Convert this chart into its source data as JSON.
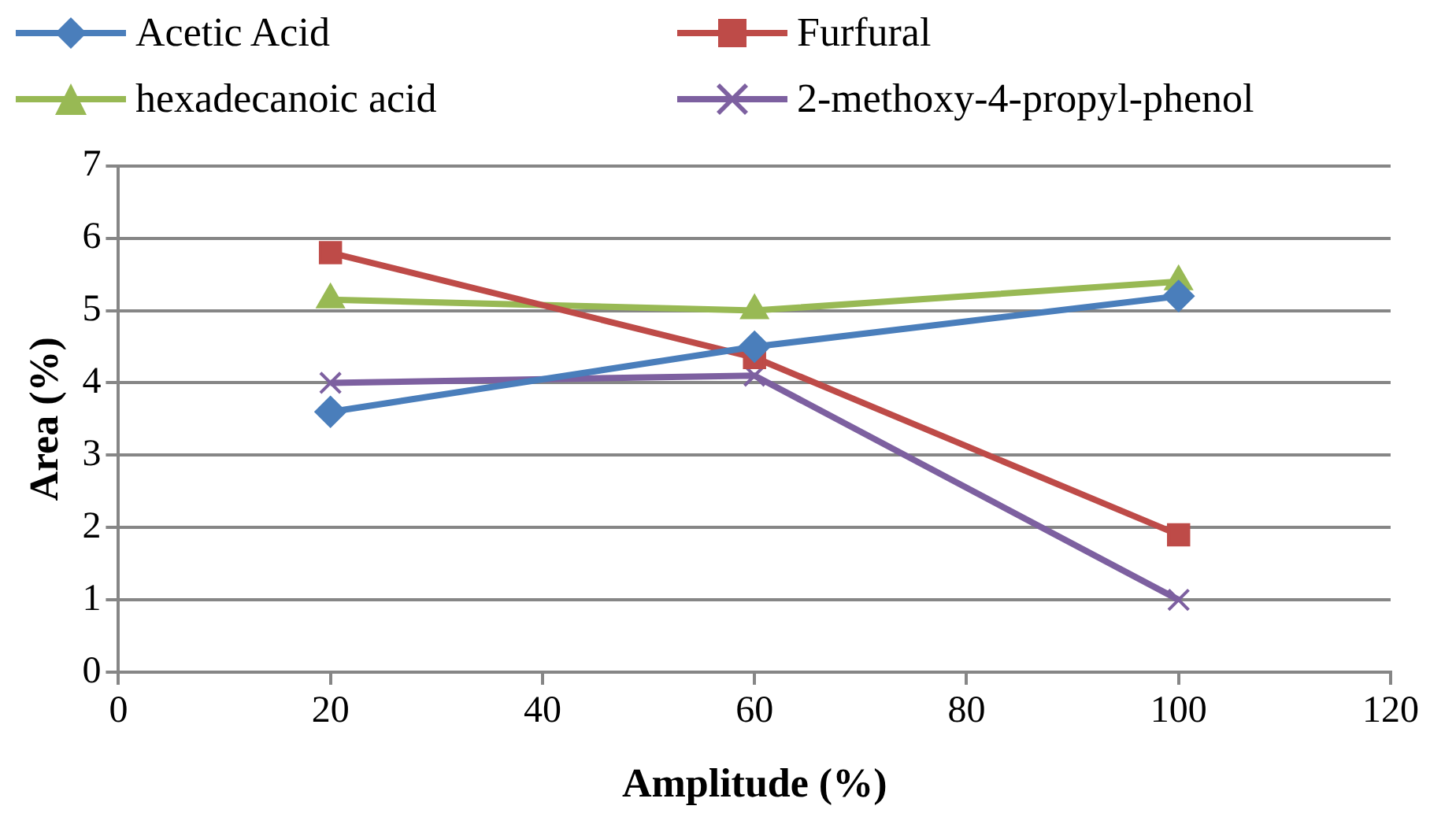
{
  "chart_data": {
    "type": "line",
    "xlabel": "Amplitude (%)",
    "ylabel": "Area (%)",
    "x": [
      20,
      60,
      100
    ],
    "series": [
      {
        "name": "Acetic Acid",
        "color": "#4a7ebb",
        "marker": "diamond",
        "values": [
          3.6,
          4.5,
          5.2
        ]
      },
      {
        "name": "Furfural",
        "color": "#be4b48",
        "marker": "square",
        "values": [
          5.8,
          4.35,
          1.9
        ]
      },
      {
        "name": "hexadecanoic acid",
        "color": "#98b954",
        "marker": "triangle",
        "values": [
          5.15,
          5.0,
          5.4
        ]
      },
      {
        "name": "2-methoxy-4-propyl-phenol",
        "color": "#7d60a0",
        "marker": "cross",
        "values": [
          4.0,
          4.1,
          1.0
        ]
      }
    ],
    "xlim": [
      0,
      120
    ],
    "xticks": [
      0,
      20,
      40,
      60,
      80,
      100,
      120
    ],
    "ylim": [
      0,
      7
    ],
    "yticks": [
      0,
      1,
      2,
      3,
      4,
      5,
      6,
      7
    ],
    "grid": "y",
    "legend": "top"
  }
}
